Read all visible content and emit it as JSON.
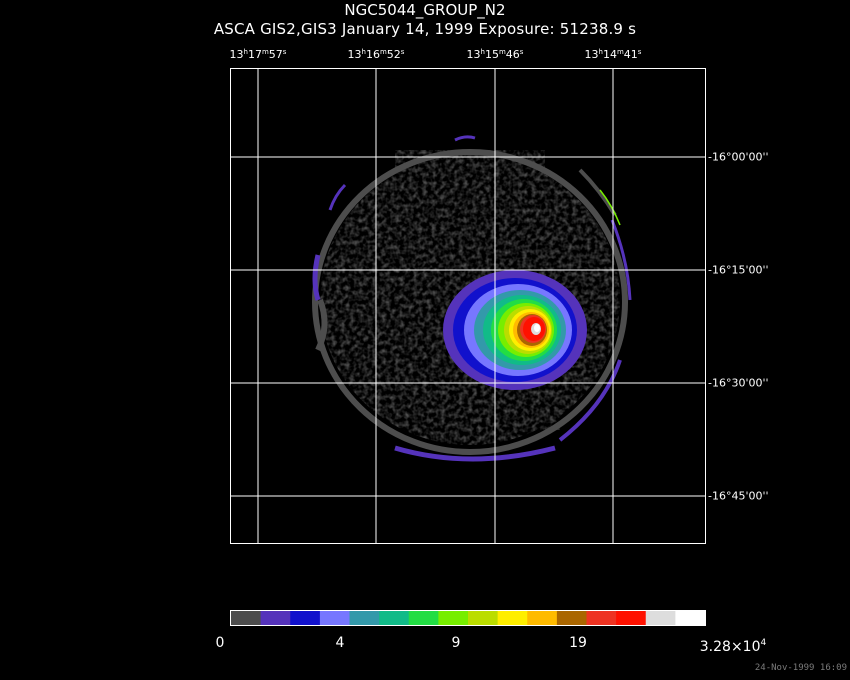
{
  "title": "NGC5044_GROUP_N2",
  "subtitle": "ASCA GIS2,GIS3 January 14, 1999 Exposure: 51238.9 s",
  "ra_ticks": [
    {
      "h": "13",
      "m": "17",
      "s": "57"
    },
    {
      "h": "13",
      "m": "16",
      "s": "52"
    },
    {
      "h": "13",
      "m": "15",
      "s": "46"
    },
    {
      "h": "13",
      "m": "14",
      "s": "41"
    }
  ],
  "ra_units": {
    "h": "h",
    "m": "m",
    "s": "s"
  },
  "dec_ticks": [
    "-16°00'00''",
    "-16°15'00''",
    "-16°30'00''",
    "-16°45'00''"
  ],
  "colorbar": {
    "colors": [
      "#4d4d4d",
      "#5533bb",
      "#1111cc",
      "#7777ff",
      "#3399aa",
      "#11bb88",
      "#22dd44",
      "#77ee00",
      "#bbdd00",
      "#ffee00",
      "#ffbb00",
      "#aa6600",
      "#ee3322",
      "#ff1100",
      "#dddddd",
      "#ffffff"
    ],
    "labels": {
      "l0": "0",
      "l1": "4",
      "l2": "9",
      "l3": "19",
      "max_mantissa": "3.28×10",
      "max_exp": "4"
    }
  },
  "timestamp": "24-Nov-1999 16:09"
}
